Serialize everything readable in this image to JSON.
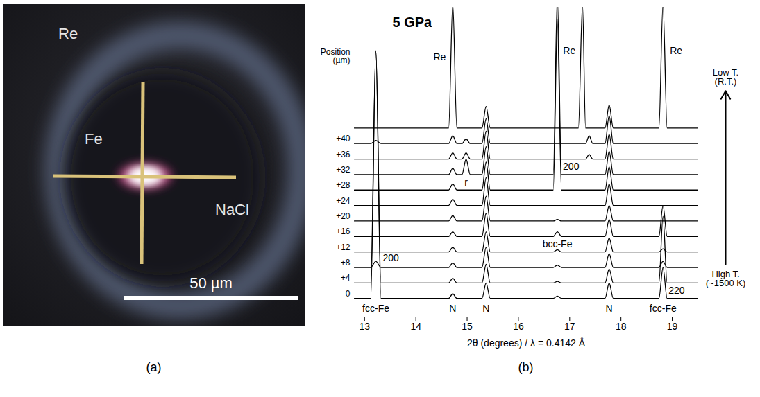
{
  "photo": {
    "labels": [
      "Re",
      "Fe",
      "NaCl"
    ],
    "scale_bar": "50 µm",
    "panel_label": "(a)"
  },
  "chart_data": {
    "type": "line",
    "title": "5 GPa",
    "panel_label": "(b)",
    "x_label": "2θ (degrees) / λ = 0.4142 Å",
    "series_label": "Position (µm)",
    "low_label": "Low T. (R.T.)",
    "high_label": "High T. (~1500 K)",
    "color": "#000000",
    "tick_labels": "x",
    "xlim": [
      12.8,
      19.5
    ],
    "xticks": [
      13,
      14,
      15,
      16,
      17,
      18,
      19
    ],
    "x": [
      12.8,
      13.12,
      13.22,
      13.32,
      14.3,
      14.64,
      14.72,
      14.8,
      14.9,
      14.98,
      15.06,
      15.29,
      15.37,
      15.45,
      16.3,
      16.68,
      16.76,
      16.84,
      17.17,
      17.25,
      17.31,
      17.38,
      17.45,
      17.69,
      17.77,
      17.85,
      18.3,
      18.74,
      18.82,
      18.9,
      19.5
    ],
    "series": [
      {
        "name": "0",
        "values": [
          0,
          0,
          16,
          0,
          0,
          0,
          0.3,
          0,
          0,
          0,
          0,
          0,
          1.0,
          0,
          0,
          0,
          0.15,
          0,
          0,
          0,
          0,
          0,
          0,
          0,
          1.0,
          0,
          0,
          0,
          2.0,
          0,
          0
        ]
      },
      {
        "name": "+4",
        "values": [
          0,
          0,
          15,
          0,
          0,
          0,
          0.3,
          0,
          0,
          0,
          0,
          0,
          1.2,
          0,
          0,
          0,
          0.1,
          0,
          0,
          0,
          0,
          0,
          0,
          0,
          0.9,
          0,
          0,
          0,
          4.3,
          0,
          0
        ]
      },
      {
        "name": "+8",
        "values": [
          0,
          0,
          0.4,
          0,
          0,
          0,
          0.3,
          0,
          0,
          0,
          0,
          0,
          1.3,
          0,
          0,
          0,
          0.15,
          0,
          0,
          0,
          0,
          0,
          0,
          0,
          0.9,
          0,
          0,
          0,
          0.4,
          0,
          0
        ]
      },
      {
        "name": "+12",
        "values": [
          0,
          0,
          0,
          0,
          0,
          0,
          0.3,
          0,
          0,
          0,
          0,
          0,
          1.3,
          0,
          0,
          0,
          0.15,
          0,
          0,
          0,
          0,
          0,
          0,
          0,
          0.9,
          0,
          0,
          0,
          0.2,
          0,
          0
        ]
      },
      {
        "name": "+16",
        "values": [
          0,
          0,
          0,
          0,
          0,
          0,
          0.3,
          0,
          0,
          0,
          0,
          0,
          1.5,
          0,
          0,
          0,
          0.3,
          0,
          0,
          0,
          0,
          0,
          0,
          0,
          1.1,
          0,
          0,
          0,
          2.0,
          0,
          0
        ]
      },
      {
        "name": "+20",
        "values": [
          0,
          0,
          0,
          0,
          0,
          0,
          0.35,
          0,
          0,
          0,
          0,
          0,
          1.6,
          0,
          0,
          0,
          0.1,
          0,
          0,
          0,
          0,
          0,
          0,
          0,
          1.0,
          0,
          0,
          0,
          0,
          0,
          0
        ]
      },
      {
        "name": "+24",
        "values": [
          0,
          0,
          0,
          0,
          0,
          0,
          0.4,
          0,
          0,
          0,
          0,
          0,
          1.8,
          0,
          0,
          0,
          0,
          0,
          0,
          0,
          0,
          0,
          0,
          0,
          1.4,
          0,
          0,
          0,
          0,
          0,
          0
        ]
      },
      {
        "name": "+28",
        "values": [
          0,
          0,
          0,
          0,
          0,
          0,
          0.4,
          0,
          0,
          0,
          0,
          0,
          1.8,
          0,
          0,
          0,
          11,
          0,
          0,
          0,
          0,
          0,
          0,
          0,
          1.5,
          0,
          0,
          0,
          0,
          0,
          0
        ]
      },
      {
        "name": "+32",
        "values": [
          0,
          0,
          0,
          0,
          0,
          0,
          0.4,
          0,
          0,
          1.0,
          0,
          0,
          1.8,
          0,
          0,
          0,
          11.5,
          0,
          0,
          0,
          0,
          0,
          0,
          0,
          1.5,
          0,
          0,
          0,
          0,
          0,
          0
        ]
      },
      {
        "name": "+36",
        "values": [
          0,
          0,
          0,
          0,
          0,
          0,
          0.4,
          0,
          0,
          0.4,
          0,
          0,
          1.8,
          0,
          0,
          0,
          0,
          0,
          0,
          0,
          0,
          0.3,
          0,
          0,
          1.6,
          0,
          0,
          0,
          0,
          0,
          0
        ]
      },
      {
        "name": "+40",
        "values": [
          0,
          0,
          0.2,
          0,
          0,
          0,
          0.5,
          0,
          0,
          0.3,
          0,
          0,
          1.6,
          0,
          0,
          0,
          0,
          0,
          0,
          0,
          0,
          0.5,
          0,
          0,
          1.8,
          0,
          0,
          0,
          0,
          0,
          0
        ]
      },
      {
        "values": [
          0,
          0,
          0,
          0,
          0,
          0,
          8,
          0,
          0,
          0,
          0,
          0,
          1.4,
          0,
          0,
          0,
          0,
          0,
          0,
          8,
          0,
          0,
          0,
          0,
          1.5,
          0,
          0,
          0,
          8,
          0,
          0
        ]
      }
    ],
    "annotations": [
      {
        "text": "Re",
        "x": 14.72
      },
      {
        "text": "Re",
        "x": 17.25
      },
      {
        "text": "Re",
        "x": 18.82
      },
      {
        "text": "r",
        "x": 14.98
      },
      {
        "text": "N",
        "x": 14.72
      },
      {
        "text": "N",
        "x": 15.37
      },
      {
        "text": "N",
        "x": 17.77
      },
      {
        "text": "fcc-Fe",
        "x": 13.22
      },
      {
        "text": "200",
        "x": 13.22
      },
      {
        "text": "fcc-Fe",
        "x": 18.82
      },
      {
        "text": "220",
        "x": 18.82
      },
      {
        "text": "bcc-Fe",
        "x": 16.76
      },
      {
        "text": "200",
        "x": 16.76
      }
    ]
  }
}
